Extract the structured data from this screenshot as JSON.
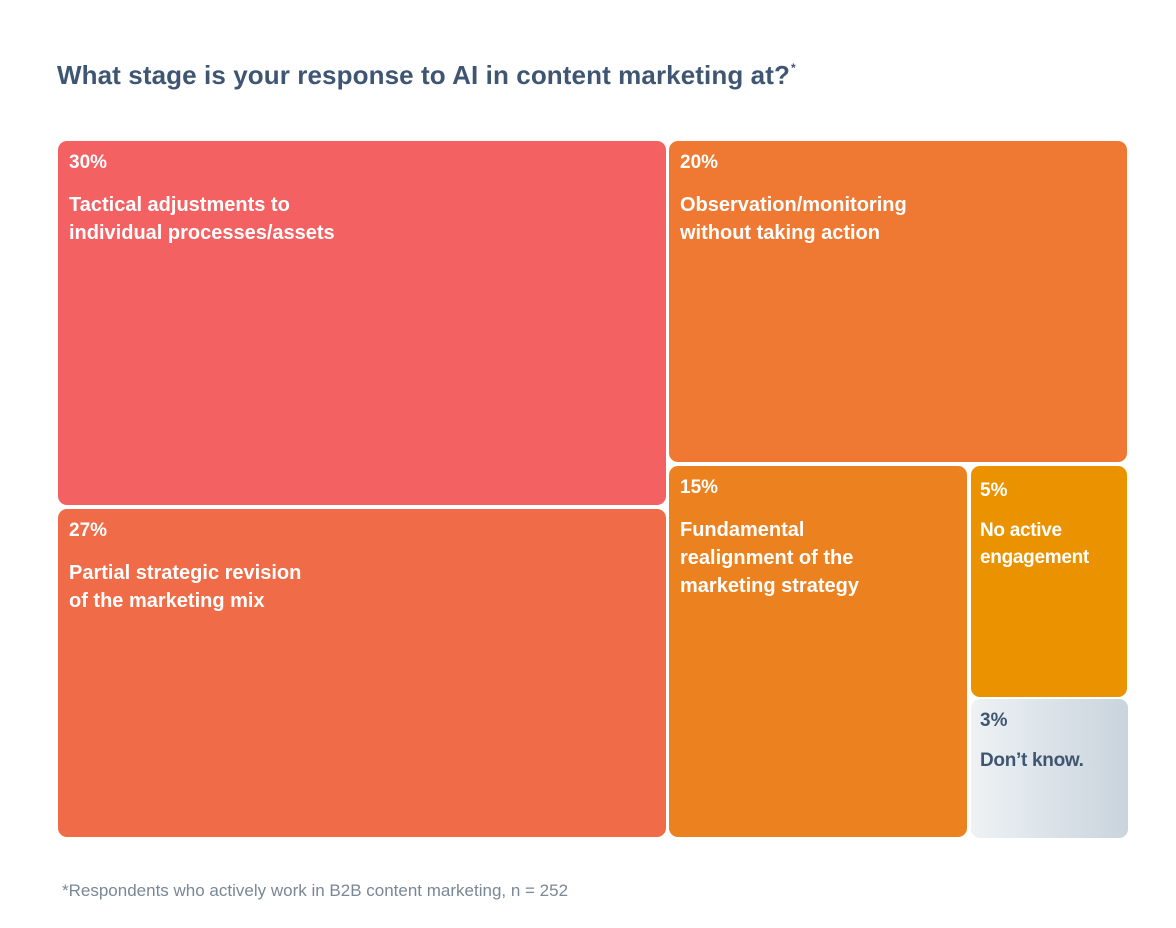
{
  "title": "What stage is your response to AI in content marketing at?",
  "title_marker": "*",
  "footnote": "*Respondents who actively work in B2B content marketing, n = 252",
  "chart_data": {
    "type": "treemap",
    "title": "What stage is your response to AI in content marketing at?",
    "unit": "%",
    "items": [
      {
        "id": "tactical",
        "value": 30,
        "value_label": "30%",
        "label": "Tactical adjustments to\nindividual processes/assets",
        "color": "#f46163"
      },
      {
        "id": "partial",
        "value": 27,
        "value_label": "27%",
        "label": "Partial strategic revision\nof the marketing mix",
        "color": "#f06b47"
      },
      {
        "id": "observation",
        "value": 20,
        "value_label": "20%",
        "label": "Observation/monitoring\nwithout taking action",
        "color": "#ef7932"
      },
      {
        "id": "fundamental",
        "value": 15,
        "value_label": "15%",
        "label": "Fundamental\nrealignment of the\nmarketing strategy",
        "color": "#ec8120"
      },
      {
        "id": "no-active",
        "value": 5,
        "value_label": "5%",
        "label": "No active\nengagement",
        "color": "#ea9200"
      },
      {
        "id": "dont-know",
        "value": 3,
        "value_label": "3%",
        "label": "Don’t know.",
        "color": "#dde4ea"
      }
    ]
  }
}
